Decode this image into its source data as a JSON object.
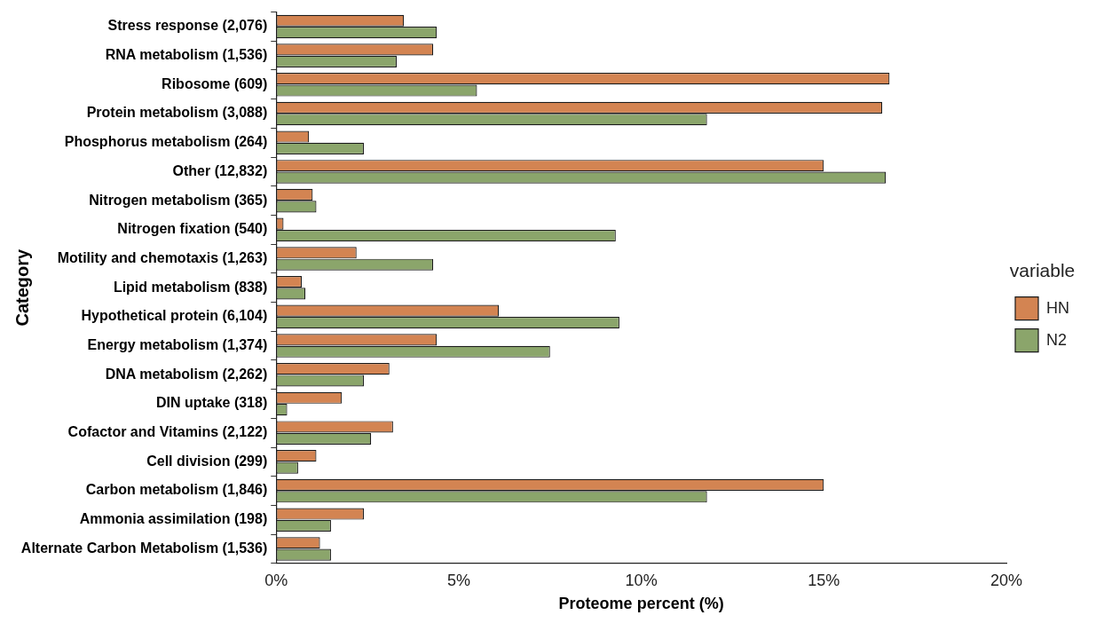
{
  "chart_data": {
    "type": "bar",
    "orientation": "horizontal",
    "xlabel": "Proteome percent (%)",
    "ylabel": "Category",
    "legend_title": "variable",
    "legend": "right",
    "categories": [
      "Stress response (2,076)",
      "RNA metabolism (1,536)",
      "Ribosome (609)",
      "Protein metabolism (3,088)",
      "Phosphorus metabolism (264)",
      "Other (12,832)",
      "Nitrogen metabolism (365)",
      "Nitrogen fixation (540)",
      "Motility and chemotaxis (1,263)",
      "Lipid metabolism (838)",
      "Hypothetical protein (6,104)",
      "Energy metabolism (1,374)",
      "DNA metabolism (2,262)",
      "DIN uptake (318)",
      "Cofactor and Vitamins (2,122)",
      "Cell division (299)",
      "Carbon metabolism (1,846)",
      "Ammonia assimilation (198)",
      "Alternate Carbon Metabolism (1,536)"
    ],
    "series": [
      {
        "name": "N2",
        "color": "#8ba56b",
        "values": [
          4.4,
          3.3,
          5.5,
          11.8,
          2.4,
          16.7,
          1.1,
          9.3,
          4.3,
          0.8,
          9.4,
          7.5,
          2.4,
          0.3,
          2.6,
          0.6,
          11.8,
          1.5,
          1.5
        ]
      },
      {
        "name": "HN",
        "color": "#d38452",
        "values": [
          3.5,
          4.3,
          16.8,
          16.6,
          0.9,
          15.0,
          1.0,
          0.2,
          2.2,
          0.7,
          6.1,
          4.4,
          3.1,
          1.8,
          3.2,
          1.1,
          15.0,
          2.4,
          1.2
        ]
      }
    ],
    "xlim": [
      0,
      20
    ],
    "xticks": [
      {
        "value": 0,
        "label": "0%"
      },
      {
        "value": 5,
        "label": "5%"
      },
      {
        "value": 10,
        "label": "10%"
      },
      {
        "value": 15,
        "label": "15%"
      },
      {
        "value": 20,
        "label": "20%"
      }
    ],
    "grid": false
  }
}
